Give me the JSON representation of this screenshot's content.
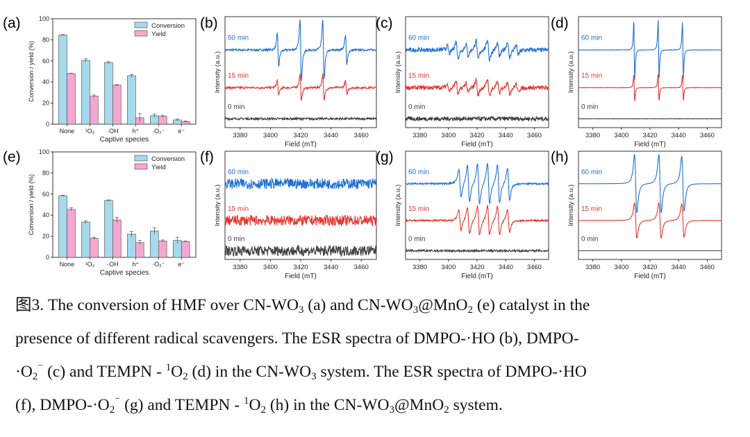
{
  "chart_data": [
    {
      "panel": "(a)",
      "type": "bar",
      "categories": [
        "None",
        "¹O₂",
        "·OH",
        "h⁺",
        "·O₂⁻",
        "e⁻"
      ],
      "series": [
        {
          "name": "Conversion",
          "values": [
            84.5,
            60.5,
            58.5,
            46,
            8,
            4
          ],
          "errors": [
            0.5,
            1.5,
            0.8,
            1.2,
            1.5,
            0.8
          ]
        },
        {
          "name": "Yield",
          "values": [
            48,
            26.5,
            37,
            6,
            7.5,
            2.5
          ],
          "errors": [
            0.3,
            1.2,
            0.5,
            4,
            1,
            0.5
          ]
        }
      ],
      "xlabel": "Captive species",
      "ylabel": "Conversion / yield (%)",
      "ylim": [
        0,
        100
      ],
      "yticks": [
        0,
        20,
        40,
        60,
        80,
        100
      ],
      "legend": "top-right"
    },
    {
      "panel": "(e)",
      "type": "bar",
      "categories": [
        "None",
        "¹O₂",
        "·OH",
        "h⁺",
        "·O₂⁻",
        "e⁻"
      ],
      "series": [
        {
          "name": "Conversion",
          "values": [
            58.5,
            33.5,
            54,
            22,
            25,
            16
          ],
          "errors": [
            0.4,
            1,
            0.5,
            2.5,
            3,
            3
          ]
        },
        {
          "name": "Yield",
          "values": [
            45.5,
            18,
            35.5,
            14,
            15.5,
            15
          ],
          "errors": [
            1.5,
            1,
            2.5,
            2,
            1,
            0.5
          ]
        }
      ],
      "xlabel": "Captive species",
      "ylabel": "Conversion / yield (%)",
      "ylim": [
        0,
        100
      ],
      "yticks": [
        0,
        20,
        40,
        60,
        80,
        100
      ],
      "legend": "top-right"
    },
    {
      "panel": "(b)",
      "type": "line",
      "pattern": "dmpo-oh",
      "xlim": [
        3370,
        3470
      ],
      "xticks": [
        3380,
        3400,
        3420,
        3440,
        3460
      ],
      "xlabel": "Field (mT)",
      "ylabel": "Intensity (a.u.)",
      "series": [
        {
          "name": "60 min",
          "amp": 1.0,
          "noise": 0.06
        },
        {
          "name": "15 min",
          "amp": 0.45,
          "noise": 0.06
        },
        {
          "name": "0 min",
          "amp": 0,
          "noise": 0.06
        }
      ]
    },
    {
      "panel": "(c)",
      "type": "line",
      "pattern": "dmpo-o2",
      "xlim": [
        3370,
        3470
      ],
      "xticks": [
        3380,
        3400,
        3420,
        3440,
        3460
      ],
      "xlabel": "Field (mT)",
      "ylabel": "Intensity (a.u.)",
      "series": [
        {
          "name": "60 min",
          "amp": 0.55,
          "noise": 0.12
        },
        {
          "name": "15 min",
          "amp": 0.45,
          "noise": 0.12
        },
        {
          "name": "0 min",
          "amp": 0,
          "noise": 0.12
        }
      ]
    },
    {
      "panel": "(d)",
      "type": "line",
      "pattern": "tempo",
      "xlim": [
        3370,
        3470
      ],
      "xticks": [
        3380,
        3400,
        3420,
        3440,
        3460
      ],
      "xlabel": "Field (mT)",
      "ylabel": "Intensity (a.u.)",
      "series": [
        {
          "name": "60 min",
          "amp": 1.0,
          "noise": 0.01
        },
        {
          "name": "15 min",
          "amp": 0.45,
          "noise": 0.01
        },
        {
          "name": "0 min",
          "amp": 0,
          "noise": 0.01
        }
      ]
    },
    {
      "panel": "(f)",
      "type": "line",
      "pattern": "noise",
      "xlim": [
        3370,
        3470
      ],
      "xticks": [
        3380,
        3400,
        3420,
        3440,
        3460
      ],
      "xlabel": "Field (mT)",
      "ylabel": "Intensity (a.u.)",
      "series": [
        {
          "name": "60 min",
          "amp": 0,
          "noise": 0.3
        },
        {
          "name": "15 min",
          "amp": 0,
          "noise": 0.3
        },
        {
          "name": "0 min",
          "amp": 0,
          "noise": 0.3
        }
      ]
    },
    {
      "panel": "(g)",
      "type": "line",
      "pattern": "dmpo-o2g",
      "xlim": [
        3370,
        3470
      ],
      "xticks": [
        3380,
        3400,
        3420,
        3440,
        3460
      ],
      "xlabel": "Field (mT)",
      "ylabel": "Intensity (a.u.)",
      "series": [
        {
          "name": "60 min",
          "amp": 0.75,
          "noise": 0.05
        },
        {
          "name": "15 min",
          "amp": 0.55,
          "noise": 0.05
        },
        {
          "name": "0 min",
          "amp": 0,
          "noise": 0.06
        }
      ]
    },
    {
      "panel": "(h)",
      "type": "line",
      "pattern": "tempo-broad",
      "xlim": [
        3370,
        3470
      ],
      "xticks": [
        3380,
        3400,
        3420,
        3440,
        3460
      ],
      "xlabel": "Field (mT)",
      "ylabel": "Intensity (a.u.)",
      "series": [
        {
          "name": "60 min",
          "amp": 1.0,
          "noise": 0.0
        },
        {
          "name": "15 min",
          "amp": 0.6,
          "noise": 0.0
        },
        {
          "name": "0 min",
          "amp": 0,
          "noise": 0.0
        }
      ]
    }
  ],
  "colors": {
    "conversion": "#a6d9ee",
    "yield": "#f4a8cf",
    "t60": "#1f6fd6",
    "t15": "#e8352e",
    "t0": "#3d3d3d"
  },
  "caption": {
    "l1_a": "图3. The conversion of HMF over CN-WO",
    "l1_b": "3",
    "l1_c": " (a) and CN-WO",
    "l1_d": "3",
    "l1_e": "@MnO",
    "l1_f": "2",
    "l1_g": " (e) catalyst in the",
    "l2": "presence of different radical scavengers. The ESR spectra of DMPO-·HO (b), DMPO-",
    "l3_a": "·O",
    "l3_b": "2",
    "l3_c": "⁻",
    "l3_d": " (c) and TEMPN - ",
    "l3_e": "1",
    "l3_f": "O",
    "l3_g": "2",
    "l3_h": " (d) in the CN-WO",
    "l3_i": "3",
    "l3_j": " system. The ESR spectra of DMPO-·HO",
    "l4_a": "(f), DMPO-·O",
    "l4_b": "2",
    "l4_c": "⁻",
    "l4_d": " (g) and TEMPN - ",
    "l4_e": "1",
    "l4_f": "O",
    "l4_g": "2",
    "l4_h": " (h) in the CN-WO",
    "l4_i": "3",
    "l4_j": "@MnO",
    "l4_k": "2",
    "l4_l": " system."
  }
}
